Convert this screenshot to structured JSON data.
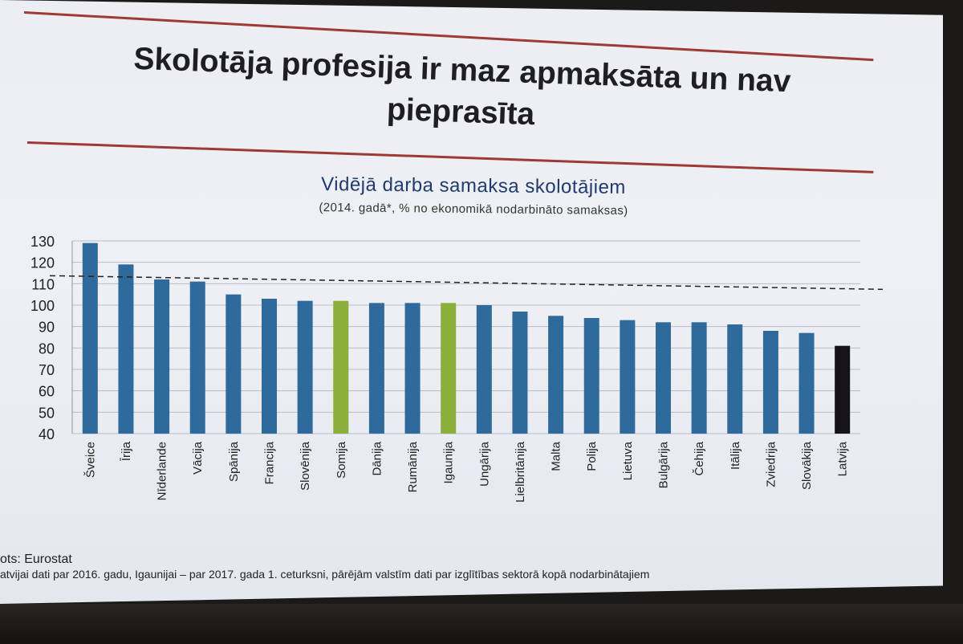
{
  "slide": {
    "title": "Skolotāja profesija ir maz apmaksāta un nav pieprasīta",
    "source": "ots: Eurostat",
    "footnote": "atvijai dati par 2016. gadu, Igaunijai – par 2017. gada 1. ceturksni, pārējām valstīm dati par izglītības sektorā kopā nodarbinātajiem"
  },
  "colors": {
    "bar_default": "#2e6a9c",
    "bar_highlight": "#8ab03a",
    "bar_latvia": "#16121a",
    "rule": "#9e3a36",
    "title": "#1e1e24",
    "chart_title": "#203a72"
  },
  "chart_data": {
    "type": "bar",
    "title": "Vidējā darba samaksa skolotājiem",
    "subtitle": "(2014. gadā*, % no ekonomikā nodarbināto samaksas)",
    "categories": [
      "Šveice",
      "Īrija",
      "Nīderlande",
      "Vācija",
      "Spānija",
      "Francija",
      "Slovēnija",
      "Somija",
      "Dānija",
      "Rumānija",
      "Igaunija",
      "Ungārija",
      "Lielbritānija",
      "Malta",
      "Polija",
      "Lietuva",
      "Bulgārija",
      "Čehija",
      "Itālija",
      "Zviedrija",
      "Slovākija",
      "Latvija"
    ],
    "values": [
      129,
      119,
      112,
      111,
      105,
      103,
      102,
      102,
      101,
      101,
      101,
      100,
      97,
      95,
      94,
      93,
      92,
      92,
      91,
      88,
      87,
      81
    ],
    "highlight": {
      "Somija": "bar_highlight",
      "Igaunija": "bar_highlight",
      "Latvija": "bar_latvia"
    },
    "reference_line": {
      "value": 113,
      "style": "dashed"
    },
    "ylim": [
      40,
      130
    ],
    "yticks": [
      40,
      50,
      60,
      70,
      80,
      90,
      100,
      110,
      120,
      130
    ],
    "grid": true
  }
}
